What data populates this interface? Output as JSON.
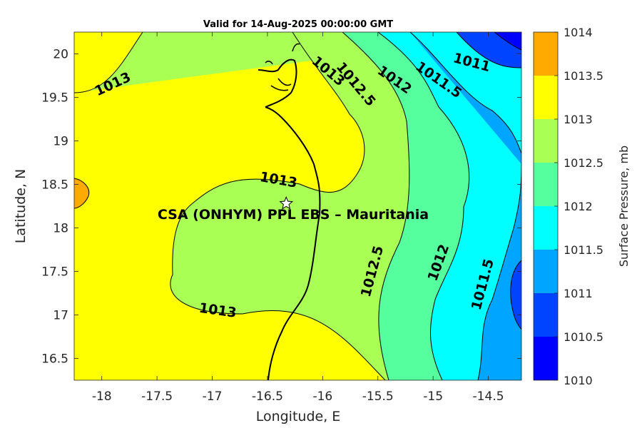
{
  "chart_data": {
    "type": "contour",
    "title": "Valid for 14-Aug-2025 00:00:00 GMT",
    "xlabel": "Longitude, E",
    "ylabel": "Latitude, N",
    "xlim": [
      -18.25,
      -14.2
    ],
    "ylim": [
      16.25,
      20.25
    ],
    "x_ticks": [
      -18,
      -17.5,
      -17,
      -16.5,
      -16,
      -15.5,
      -15,
      -14.5
    ],
    "x_tick_labels": [
      "-18",
      "-17.5",
      "-17",
      "-16.5",
      "-16",
      "-15.5",
      "-15",
      "-14.5"
    ],
    "y_ticks": [
      16.5,
      17,
      17.5,
      18,
      18.5,
      19,
      19.5,
      20
    ],
    "y_tick_labels": [
      "16.5",
      "17",
      "17.5",
      "18",
      "18.5",
      "19",
      "19.5",
      "20"
    ],
    "colorbar": {
      "label": "Surface Pressure, mb",
      "levels": [
        1010,
        1010.5,
        1011,
        1011.5,
        1012,
        1012.5,
        1013,
        1013.5,
        1014
      ],
      "level_labels": [
        "1010",
        "1010.5",
        "1011",
        "1011.5",
        "1012",
        "1012.5",
        "1013",
        "1013.5",
        "1014"
      ],
      "colors": [
        "#0000ff",
        "#0044ff",
        "#00a5ff",
        "#00ffff",
        "#55ff9e",
        "#aaff55",
        "#ffff00",
        "#ffaa00",
        "#ff5500"
      ]
    },
    "contour_labels": [
      {
        "text": "1013",
        "lon": -17.9,
        "lat": 19.65
      },
      {
        "text": "1013",
        "lon": -15.95,
        "lat": 19.8
      },
      {
        "text": "1012.5",
        "lon": -15.7,
        "lat": 19.65
      },
      {
        "text": "1012",
        "lon": -15.35,
        "lat": 19.7
      },
      {
        "text": "1011.5",
        "lon": -14.95,
        "lat": 19.7
      },
      {
        "text": "1011",
        "lon": -14.65,
        "lat": 19.9
      },
      {
        "text": "1013",
        "lon": -16.4,
        "lat": 18.55
      },
      {
        "text": "1013",
        "lon": -16.95,
        "lat": 17.05
      },
      {
        "text": "1012.5",
        "lon": -15.55,
        "lat": 17.5
      },
      {
        "text": "1012",
        "lon": -14.95,
        "lat": 17.6
      },
      {
        "text": "1011.5",
        "lon": -14.55,
        "lat": 17.35
      }
    ],
    "site": {
      "name": "CSA (ONHYM) PPL EBS  – Mauritania",
      "lon": -16.33,
      "lat": 18.28
    }
  }
}
